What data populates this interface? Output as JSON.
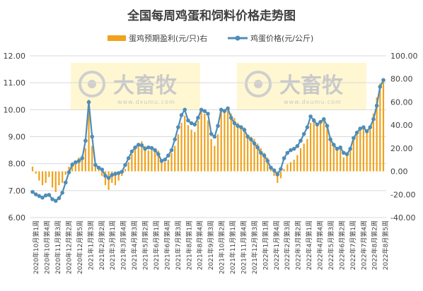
{
  "chart_data": {
    "type": "bar+line",
    "title": "全国每周鸡蛋和饲料价格走势图",
    "legend": {
      "position": "top",
      "entries": [
        {
          "name": "蛋鸡预期盈利(元/只)右",
          "color": "#F0A21B",
          "kind": "bar"
        },
        {
          "name": "鸡蛋价格(元/公斤)",
          "color": "#4E8DB9",
          "kind": "line"
        }
      ]
    },
    "watermark_text": "大畜牧",
    "watermark_url": "www.dxumu.com",
    "left_axis": {
      "min": 6,
      "max": 12,
      "step": 1,
      "ticks": [
        "6.00",
        "7.00",
        "8.00",
        "9.00",
        "10.00",
        "11.00",
        "12.00"
      ]
    },
    "right_axis": {
      "min": -40,
      "max": 100,
      "step": 20,
      "ticks": [
        "-40.00",
        "-20.00",
        "0.00",
        "20.00",
        "40.00",
        "60.00",
        "80.00",
        "100.00"
      ]
    },
    "category_labels": [
      "2020年10月第1周",
      "2020年10月第4周",
      "2020年11月第3周",
      "2020年12月第2周",
      "2020年12月第5周",
      "2021年1月第3周",
      "2021年2月第2周",
      "2021年3月第1周",
      "2021年3月第4周",
      "2021年4月第3周",
      "2021年5月第2周",
      "2021年6月第1周",
      "2021年6月第4周",
      "2021年7月第3周",
      "2021年8月第1周",
      "2021年8月第4周",
      "2021年9月第3周",
      "2021年10月第2周",
      "2021年11月第1周",
      "2021年11月第4周",
      "2021年12月第3周",
      "2022年1月第1周",
      "2022年1月第4周",
      "2022年2月第3周",
      "2022年3月第2周",
      "2022年4月第1周",
      "2022年4月第4周",
      "2022年5月第3周",
      "2022年6月第2周",
      "2022年7月第1周",
      "2022年7月第4周",
      "2022年8月第2周",
      "2022年8月第5周"
    ],
    "series": [
      {
        "name": "鸡蛋价格(元/公斤)",
        "axis": "left",
        "values": [
          6.95,
          6.86,
          6.8,
          6.74,
          6.82,
          6.84,
          6.68,
          6.62,
          6.72,
          6.92,
          7.3,
          7.68,
          7.96,
          8.05,
          8.1,
          8.2,
          8.85,
          10.28,
          9.0,
          7.95,
          7.85,
          7.78,
          7.55,
          7.47,
          7.58,
          7.62,
          7.65,
          7.7,
          7.95,
          8.2,
          8.45,
          8.6,
          8.7,
          8.68,
          8.55,
          8.6,
          8.58,
          8.5,
          8.35,
          8.1,
          8.15,
          8.3,
          8.5,
          8.9,
          9.35,
          9.8,
          10.0,
          9.6,
          9.5,
          9.45,
          9.7,
          10.0,
          9.95,
          9.85,
          9.1,
          9.0,
          9.4,
          10.0,
          9.95,
          10.05,
          9.7,
          9.5,
          9.4,
          9.35,
          9.25,
          9.0,
          8.9,
          8.75,
          8.6,
          8.4,
          8.3,
          8.1,
          7.85,
          7.75,
          7.6,
          7.8,
          8.2,
          8.4,
          8.5,
          8.55,
          8.65,
          8.85,
          9.1,
          9.35,
          9.75,
          9.6,
          9.45,
          9.55,
          9.65,
          9.4,
          8.9,
          8.7,
          8.55,
          8.6,
          8.4,
          8.35,
          8.55,
          8.95,
          9.15,
          9.3,
          9.35,
          9.2,
          9.35,
          9.65,
          10.15,
          10.85,
          11.1
        ]
      },
      {
        "name": "蛋鸡预期盈利(元/只)右",
        "axis": "right",
        "values": [
          4,
          -2,
          -8,
          -12,
          -10,
          -5,
          -14,
          -18,
          -12,
          -10,
          -3,
          4,
          8,
          9,
          12,
          14,
          20,
          62,
          22,
          4,
          2,
          -4,
          -12,
          -16,
          -10,
          -12,
          -8,
          -4,
          2,
          8,
          15,
          20,
          24,
          26,
          22,
          18,
          20,
          20,
          18,
          10,
          8,
          10,
          16,
          22,
          32,
          42,
          48,
          40,
          36,
          34,
          44,
          52,
          50,
          44,
          28,
          22,
          32,
          52,
          54,
          56,
          50,
          46,
          42,
          40,
          38,
          32,
          30,
          28,
          24,
          20,
          16,
          12,
          4,
          -4,
          -10,
          -6,
          2,
          6,
          8,
          10,
          14,
          20,
          24,
          28,
          42,
          46,
          40,
          42,
          46,
          40,
          30,
          22,
          18,
          20,
          12,
          14,
          18,
          30,
          34,
          36,
          38,
          36,
          40,
          50,
          64,
          76,
          80
        ]
      }
    ]
  }
}
